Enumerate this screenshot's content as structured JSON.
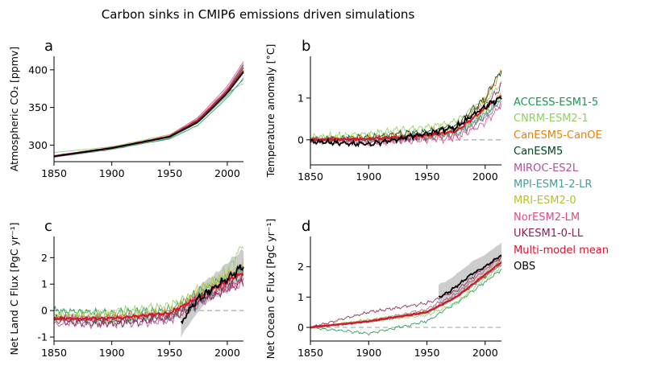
{
  "title": "Carbon sinks in CMIP6 emissions driven simulations",
  "legend": [
    {
      "name": "ACCESS-ESM1-5",
      "color": "#1a9850"
    },
    {
      "name": "CNRM-ESM2-1",
      "color": "#91cf60"
    },
    {
      "name": "CanESM5-CanOE",
      "color": "#e08214"
    },
    {
      "name": "CanESM5",
      "color": "#00441b"
    },
    {
      "name": "MIROC-ES2L",
      "color": "#b2509a"
    },
    {
      "name": "MPI-ESM1-2-LR",
      "color": "#4d9a9a"
    },
    {
      "name": "MRI-ESM2-0",
      "color": "#b5c22f"
    },
    {
      "name": "NorESM2-LM",
      "color": "#de4a84"
    },
    {
      "name": "UKESM1-0-LL",
      "color": "#8c1f52"
    },
    {
      "name": "Multi-model mean",
      "color": "#d7142b"
    },
    {
      "name": "OBS",
      "color": "#000000"
    }
  ],
  "chart_data": [
    {
      "type": "line",
      "panel": "a",
      "ylabel": "Atmospheric CO₂ [ppmv]",
      "xlim": [
        1850,
        2014
      ],
      "ylim": [
        278,
        418
      ],
      "xticks": [
        1850,
        1900,
        1950,
        2000
      ],
      "yticks": [
        300,
        350,
        400
      ],
      "models": {
        "x": [
          1850,
          1900,
          1950,
          1975,
          2000,
          2014
        ],
        "series": [
          {
            "name": "ACCESS-ESM1-5",
            "y": [
              286,
              295,
              308,
              327,
              363,
              389
            ]
          },
          {
            "name": "CNRM-ESM2-1",
            "y": [
              290,
              298,
              314,
              336,
              370,
              382
            ]
          },
          {
            "name": "CanESM5-CanOE",
            "y": [
              285,
              296,
              311,
              332,
              371,
              402
            ]
          },
          {
            "name": "CanESM5",
            "y": [
              286,
              297,
              312,
              333,
              372,
              403
            ]
          },
          {
            "name": "MIROC-ES2L",
            "y": [
              285,
              295,
              312,
              335,
              375,
              408
            ]
          },
          {
            "name": "MPI-ESM1-2-LR",
            "y": [
              284,
              294,
              309,
              330,
              366,
              387
            ]
          },
          {
            "name": "MRI-ESM2-0",
            "y": [
              285,
              295,
              310,
              331,
              370,
              398
            ]
          },
          {
            "name": "NorESM2-LM",
            "y": [
              284,
              296,
              313,
              337,
              378,
              411
            ]
          },
          {
            "name": "UKESM1-0-LL",
            "y": [
              286,
              297,
              312,
              334,
              373,
              406
            ]
          }
        ],
        "mean": {
          "name": "Multi-model mean",
          "y": [
            285,
            296,
            311,
            333,
            371,
            399
          ]
        }
      },
      "obs": {
        "x": [
          1850,
          1900,
          1950,
          1975,
          2000,
          2014
        ],
        "y": [
          285,
          296,
          311,
          331,
          369,
          397
        ]
      }
    },
    {
      "type": "line",
      "panel": "b",
      "ylabel": "Temperature anomaly [°C]",
      "xlim": [
        1850,
        2014
      ],
      "ylim": [
        -0.6,
        2.0
      ],
      "xticks": [
        1850,
        1900,
        1950,
        2000
      ],
      "yticks": [
        0,
        1
      ],
      "zero_line": true,
      "models": {
        "x": [
          1850,
          1900,
          1950,
          1975,
          2000,
          2014
        ],
        "series": [
          {
            "name": "ACCESS-ESM1-5",
            "y": [
              0.0,
              0.0,
              0.05,
              0.15,
              0.6,
              1.0
            ]
          },
          {
            "name": "CNRM-ESM2-1",
            "y": [
              0.05,
              0.15,
              0.3,
              0.45,
              0.95,
              1.35
            ]
          },
          {
            "name": "CanESM5-CanOE",
            "y": [
              0.0,
              0.05,
              0.15,
              0.3,
              0.95,
              1.65
            ]
          },
          {
            "name": "CanESM5",
            "y": [
              0.0,
              0.05,
              0.2,
              0.35,
              1.0,
              1.7
            ]
          },
          {
            "name": "MIROC-ES2L",
            "y": [
              0.0,
              -0.05,
              0.05,
              0.1,
              0.55,
              0.9
            ]
          },
          {
            "name": "MPI-ESM1-2-LR",
            "y": [
              0.0,
              0.0,
              0.1,
              0.2,
              0.6,
              1.0
            ]
          },
          {
            "name": "MRI-ESM2-0",
            "y": [
              0.0,
              0.05,
              0.1,
              0.2,
              0.7,
              1.1
            ]
          },
          {
            "name": "NorESM2-LM",
            "y": [
              0.0,
              -0.05,
              0.0,
              0.05,
              0.4,
              0.85
            ]
          },
          {
            "name": "UKESM1-0-LL",
            "y": [
              0.0,
              0.0,
              0.1,
              0.25,
              0.8,
              1.3
            ]
          }
        ],
        "mean": {
          "name": "Multi-model mean",
          "y": [
            0.0,
            0.02,
            0.1,
            0.2,
            0.75,
            1.05
          ]
        }
      },
      "obs": {
        "x": [
          1850,
          1900,
          1950,
          1975,
          2000,
          2014
        ],
        "y": [
          -0.05,
          -0.1,
          0.15,
          0.3,
          0.8,
          1.0
        ]
      }
    },
    {
      "type": "line",
      "panel": "c",
      "ylabel": "Net Land C Flux [PgC yr⁻¹]",
      "xlim": [
        1850,
        2014
      ],
      "ylim": [
        -1.15,
        2.8
      ],
      "xticks": [
        1850,
        1900,
        1950,
        2000
      ],
      "yticks": [
        -1,
        0,
        1,
        2
      ],
      "zero_line": true,
      "models": {
        "x": [
          1850,
          1900,
          1950,
          1975,
          2000,
          2014
        ],
        "series": [
          {
            "name": "ACCESS-ESM1-5",
            "y": [
              0.0,
              -0.1,
              0.0,
              0.7,
              1.2,
              1.5
            ]
          },
          {
            "name": "CNRM-ESM2-1",
            "y": [
              -0.2,
              -0.1,
              0.2,
              0.6,
              1.5,
              2.5
            ]
          },
          {
            "name": "CanESM5-CanOE",
            "y": [
              -0.3,
              -0.3,
              -0.1,
              0.5,
              1.2,
              1.5
            ]
          },
          {
            "name": "CanESM5",
            "y": [
              -0.3,
              -0.4,
              -0.2,
              0.4,
              1.0,
              1.3
            ]
          },
          {
            "name": "MIROC-ES2L",
            "y": [
              -0.5,
              -0.5,
              -0.4,
              0.2,
              0.9,
              1.2
            ]
          },
          {
            "name": "MPI-ESM1-2-LR",
            "y": [
              -0.3,
              -0.3,
              -0.2,
              0.3,
              1.2,
              1.6
            ]
          },
          {
            "name": "MRI-ESM2-0",
            "y": [
              -0.2,
              -0.2,
              -0.1,
              0.8,
              1.4,
              1.8
            ]
          },
          {
            "name": "NorESM2-LM",
            "y": [
              -0.3,
              -0.3,
              -0.2,
              0.5,
              0.9,
              1.0
            ]
          },
          {
            "name": "UKESM1-0-LL",
            "y": [
              -0.4,
              -0.5,
              -0.3,
              0.3,
              0.8,
              1.1
            ]
          }
        ],
        "mean": {
          "name": "Multi-model mean",
          "y": [
            -0.3,
            -0.3,
            -0.1,
            0.5,
            1.1,
            1.4
          ]
        }
      },
      "obs": {
        "x": [
          1960,
          1970,
          1980,
          1990,
          2000,
          2014
        ],
        "y": [
          -0.5,
          0.2,
          0.6,
          0.9,
          1.2,
          1.7
        ],
        "lower": [
          -1.0,
          -0.3,
          0.2,
          0.5,
          0.7,
          1.2
        ],
        "upper": [
          0.1,
          0.6,
          1.1,
          1.4,
          1.8,
          2.3
        ]
      }
    },
    {
      "type": "line",
      "panel": "d",
      "ylabel": "Net Ocean C Flux [PgC yr⁻¹]",
      "xlim": [
        1850,
        2014
      ],
      "ylim": [
        -0.45,
        3.0
      ],
      "xticks": [
        1850,
        1900,
        1950,
        2000
      ],
      "yticks": [
        0,
        1,
        2
      ],
      "zero_line": true,
      "models": {
        "x": [
          1850,
          1900,
          1950,
          1975,
          2000,
          2014
        ],
        "series": [
          {
            "name": "ACCESS-ESM1-5",
            "y": [
              0.0,
              -0.2,
              0.2,
              0.8,
              1.5,
              1.9
            ]
          },
          {
            "name": "CNRM-ESM2-1",
            "y": [
              0.0,
              0.2,
              0.4,
              0.8,
              1.6,
              2.0
            ]
          },
          {
            "name": "CanESM5-CanOE",
            "y": [
              0.0,
              0.2,
              0.5,
              1.0,
              1.7,
              2.1
            ]
          },
          {
            "name": "CanESM5",
            "y": [
              0.0,
              0.2,
              0.5,
              1.0,
              1.7,
              2.2
            ]
          },
          {
            "name": "MIROC-ES2L",
            "y": [
              0.0,
              0.2,
              0.6,
              1.1,
              1.9,
              2.3
            ]
          },
          {
            "name": "MPI-ESM1-2-LR",
            "y": [
              0.0,
              0.2,
              0.5,
              1.0,
              1.7,
              2.1
            ]
          },
          {
            "name": "MRI-ESM2-0",
            "y": [
              0.0,
              0.25,
              0.5,
              1.0,
              1.8,
              2.2
            ]
          },
          {
            "name": "NorESM2-LM",
            "y": [
              0.0,
              0.2,
              0.5,
              1.0,
              1.7,
              2.1
            ]
          },
          {
            "name": "UKESM1-0-LL",
            "y": [
              0.0,
              0.5,
              0.8,
              1.2,
              2.0,
              2.3
            ]
          }
        ],
        "mean": {
          "name": "Multi-model mean",
          "y": [
            0.0,
            0.2,
            0.5,
            1.0,
            1.75,
            2.15
          ]
        }
      },
      "obs": {
        "x": [
          1960,
          1970,
          1980,
          1990,
          2000,
          2014
        ],
        "y": [
          1.0,
          1.2,
          1.5,
          1.8,
          2.0,
          2.4
        ],
        "lower": [
          0.7,
          0.9,
          1.2,
          1.5,
          1.7,
          2.1
        ],
        "upper": [
          1.4,
          1.6,
          1.9,
          2.2,
          2.4,
          2.8
        ]
      }
    }
  ]
}
